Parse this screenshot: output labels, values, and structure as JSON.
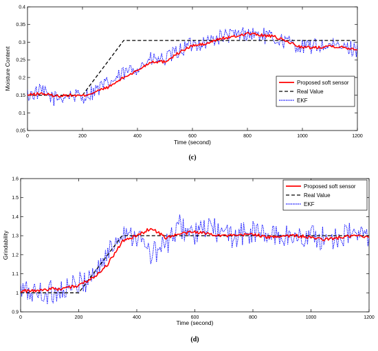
{
  "chart_data": [
    {
      "type": "line",
      "panel_label": "(c)",
      "xlabel": "Time (second)",
      "ylabel": "Moisture Content",
      "xlim": [
        0,
        1200
      ],
      "ylim": [
        0.05,
        0.4
      ],
      "xticks": [
        0,
        200,
        400,
        600,
        800,
        1000,
        1200
      ],
      "yticks": [
        0.05,
        0.1,
        0.15,
        0.2,
        0.25,
        0.3,
        0.35,
        0.4
      ],
      "legend_position": "middle-right",
      "grid": false,
      "series": [
        {
          "name": "Proposed soft sensor",
          "color": "#ff0000",
          "style": "solid",
          "x": [
            0,
            50,
            100,
            150,
            200,
            250,
            300,
            350,
            400,
            450,
            500,
            550,
            600,
            650,
            700,
            750,
            800,
            850,
            900,
            950,
            1000,
            1050,
            1100,
            1150,
            1200
          ],
          "values": [
            0.15,
            0.155,
            0.148,
            0.15,
            0.148,
            0.16,
            0.175,
            0.2,
            0.22,
            0.245,
            0.245,
            0.27,
            0.29,
            0.295,
            0.31,
            0.315,
            0.325,
            0.32,
            0.315,
            0.3,
            0.285,
            0.285,
            0.29,
            0.285,
            0.28
          ]
        },
        {
          "name": "Real Value",
          "color": "#000000",
          "style": "dashed",
          "x": [
            0,
            200,
            350,
            1200
          ],
          "values": [
            0.15,
            0.15,
            0.305,
            0.305
          ]
        },
        {
          "name": "EKF",
          "color": "#0000ff",
          "style": "dotted",
          "x": [
            0,
            50,
            100,
            150,
            200,
            250,
            300,
            350,
            400,
            450,
            500,
            550,
            600,
            650,
            700,
            750,
            800,
            850,
            900,
            950,
            1000,
            1050,
            1100,
            1150,
            1200
          ],
          "values": [
            0.15,
            0.16,
            0.14,
            0.15,
            0.145,
            0.165,
            0.185,
            0.21,
            0.23,
            0.25,
            0.25,
            0.275,
            0.295,
            0.3,
            0.315,
            0.32,
            0.325,
            0.32,
            0.31,
            0.3,
            0.285,
            0.29,
            0.29,
            0.285,
            0.28
          ],
          "noise_amplitude": 0.022
        }
      ]
    },
    {
      "type": "line",
      "panel_label": "(d)",
      "xlabel": "Time (second)",
      "ylabel": "Grindability",
      "xlim": [
        0,
        1200
      ],
      "ylim": [
        0.9,
        1.6
      ],
      "xticks": [
        0,
        200,
        400,
        600,
        800,
        1000,
        1200
      ],
      "yticks": [
        0.9,
        1,
        1.1,
        1.2,
        1.3,
        1.4,
        1.5,
        1.6
      ],
      "legend_position": "top-right",
      "grid": false,
      "series": [
        {
          "name": "Proposed soft sensor",
          "color": "#ff0000",
          "style": "solid",
          "x": [
            0,
            50,
            100,
            150,
            200,
            250,
            300,
            350,
            400,
            450,
            500,
            550,
            600,
            650,
            700,
            750,
            800,
            850,
            900,
            950,
            1000,
            1050,
            1100,
            1150,
            1200
          ],
          "values": [
            1.01,
            1.01,
            1.02,
            1.02,
            1.04,
            1.08,
            1.15,
            1.27,
            1.3,
            1.34,
            1.29,
            1.31,
            1.32,
            1.31,
            1.3,
            1.3,
            1.31,
            1.29,
            1.3,
            1.3,
            1.29,
            1.28,
            1.29,
            1.3,
            1.29
          ]
        },
        {
          "name": "Real Value",
          "color": "#000000",
          "style": "dashed",
          "x": [
            0,
            200,
            350,
            1200
          ],
          "values": [
            1.0,
            1.0,
            1.3,
            1.3
          ]
        },
        {
          "name": "EKF",
          "color": "#0000ff",
          "style": "dotted",
          "x": [
            0,
            50,
            100,
            150,
            200,
            250,
            300,
            350,
            400,
            450,
            500,
            550,
            600,
            650,
            700,
            750,
            800,
            850,
            900,
            950,
            1000,
            1050,
            1100,
            1150,
            1200
          ],
          "values": [
            1.01,
            1.0,
            1.0,
            1.02,
            1.04,
            1.1,
            1.2,
            1.33,
            1.3,
            1.2,
            1.25,
            1.35,
            1.3,
            1.35,
            1.3,
            1.3,
            1.32,
            1.3,
            1.3,
            1.29,
            1.3,
            1.28,
            1.3,
            1.31,
            1.29
          ],
          "noise_amplitude": 0.065
        }
      ]
    }
  ]
}
